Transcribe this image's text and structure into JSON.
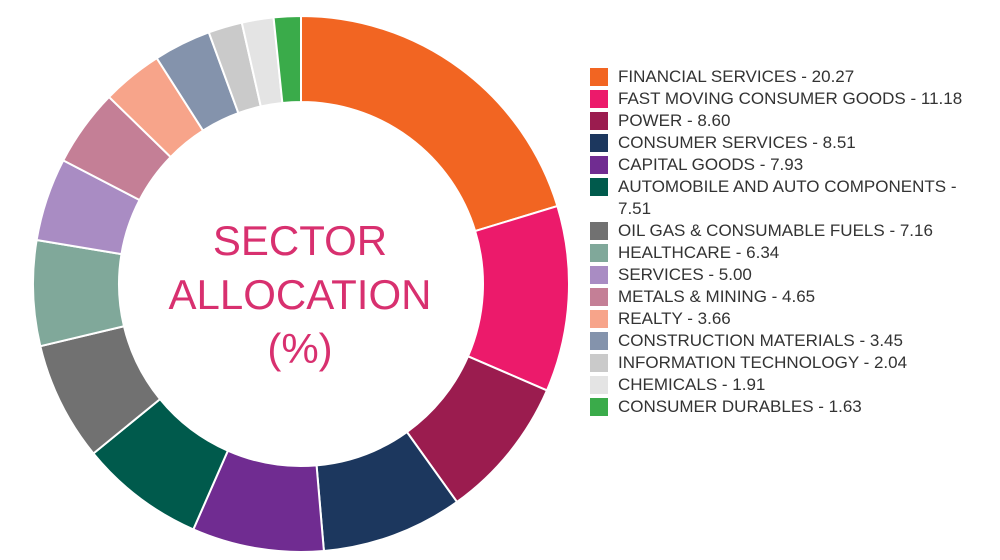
{
  "chart_data": {
    "type": "donut",
    "title": "SECTOR ALLOCATION (%)",
    "categories": [
      "FINANCIAL SERVICES - 20.27",
      "FAST MOVING CONSUMER GOODS - 11.18",
      "POWER - 8.60",
      "CONSUMER SERVICES - 8.51",
      "CAPITAL GOODS - 7.93",
      "AUTOMOBILE AND AUTO COMPONENTS - 7.51",
      "OIL GAS & CONSUMABLE FUELS - 7.16",
      "HEALTHCARE - 6.34",
      "SERVICES - 5.00",
      "METALS & MINING - 4.65",
      "REALTY - 3.66",
      "CONSTRUCTION MATERIALS - 3.45",
      "INFORMATION TECHNOLOGY - 2.04",
      "CHEMICALS - 1.91",
      "CONSUMER DURABLES - 1.63"
    ],
    "values": [
      20.27,
      11.18,
      8.6,
      8.51,
      7.93,
      7.51,
      7.16,
      6.34,
      5.0,
      4.65,
      3.66,
      3.45,
      2.04,
      1.91,
      1.63
    ],
    "colors": [
      "#f26522",
      "#ec1a6b",
      "#9b1c4f",
      "#1c375e",
      "#702c91",
      "#005a4c",
      "#717171",
      "#80a89a",
      "#a98cc3",
      "#c47f96",
      "#f7a48a",
      "#8493ac",
      "#cacaca",
      "#e4e4e4",
      "#3aab4a"
    ]
  }
}
